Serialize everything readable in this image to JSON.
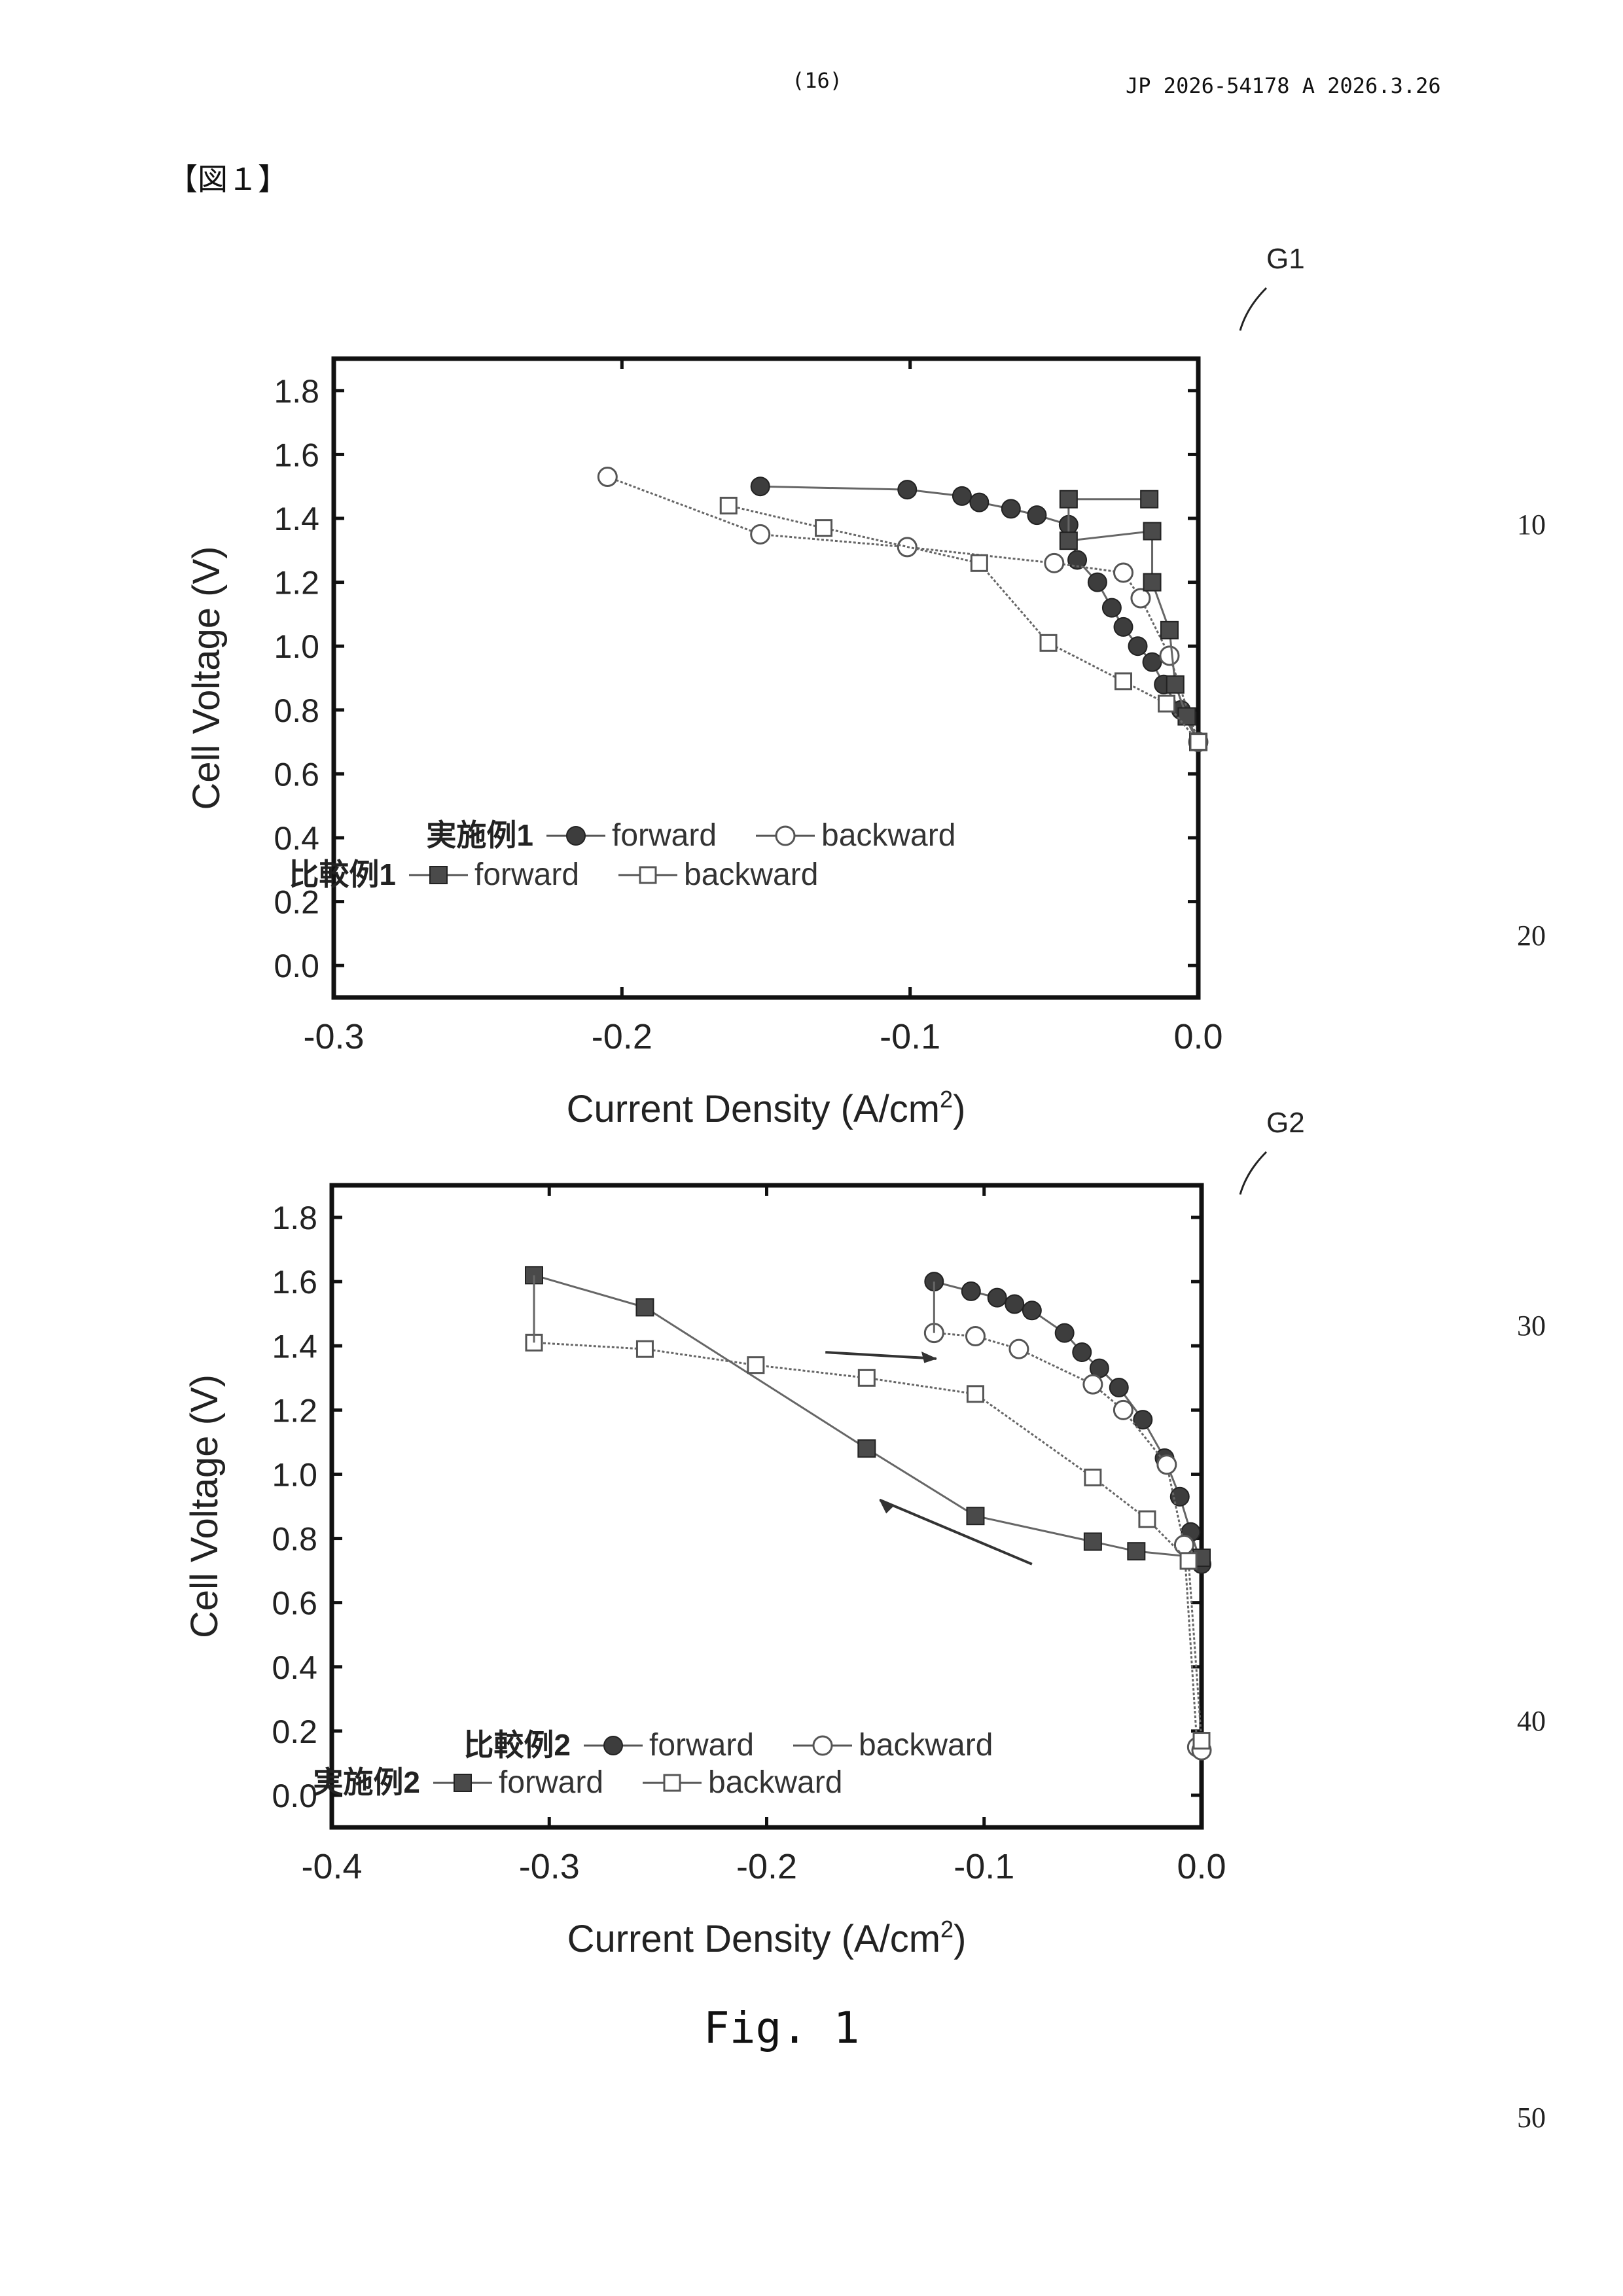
{
  "header": {
    "page": "(16)",
    "doc_id": "JP  2026-54178  A  2026.3.26"
  },
  "figure_label": "【図１】",
  "caption": "Fig. 1",
  "line_numbers": [
    "10",
    "20",
    "30",
    "40",
    "50"
  ],
  "chart_data": [
    {
      "id": "G1",
      "type": "line",
      "label": "G1",
      "xlabel": "Current Density (A/cm",
      "xlabel_sup": "2",
      "xlabel_end": ")",
      "ylabel": "Cell Voltage (V)",
      "xlim": [
        -0.3,
        0.0
      ],
      "ylim": [
        -0.1,
        1.9
      ],
      "xticks": [
        "-0.3",
        "-0.2",
        "-0.1",
        "0.0"
      ],
      "xtick_values": [
        -0.3,
        -0.2,
        -0.1,
        0.0
      ],
      "yticks": [
        "0.0",
        "0.2",
        "0.4",
        "0.6",
        "0.8",
        "1.0",
        "1.2",
        "1.4",
        "1.6",
        "1.8"
      ],
      "ytick_values": [
        0,
        0.2,
        0.4,
        0.6,
        0.8,
        1.0,
        1.2,
        1.4,
        1.6,
        1.8
      ],
      "legend": [
        {
          "group": "実施例1",
          "entries": [
            "forward",
            "backward"
          ]
        },
        {
          "group": "比較例1",
          "entries": [
            "forward",
            "backward"
          ]
        }
      ],
      "series": [
        {
          "name": "実施例1 forward",
          "marker": "filled-circle",
          "x": [
            -0.152,
            -0.101,
            -0.082,
            -0.076,
            -0.065,
            -0.056,
            -0.045,
            -0.042,
            -0.035,
            -0.03,
            -0.026,
            -0.021,
            -0.016,
            -0.012,
            -0.006,
            0.0
          ],
          "y": [
            1.5,
            1.49,
            1.47,
            1.45,
            1.43,
            1.41,
            1.38,
            1.27,
            1.2,
            1.12,
            1.06,
            1.0,
            0.95,
            0.88,
            0.8,
            0.7
          ]
        },
        {
          "name": "実施例1 backward",
          "marker": "open-circle",
          "x": [
            -0.205,
            -0.152,
            -0.101,
            -0.05,
            -0.026,
            -0.02,
            -0.01,
            0.0
          ],
          "y": [
            1.53,
            1.35,
            1.31,
            1.26,
            1.23,
            1.15,
            0.97,
            0.7
          ]
        },
        {
          "name": "比較例1 forward",
          "marker": "filled-square",
          "x": [
            -0.017,
            -0.045,
            -0.045,
            -0.016,
            -0.016,
            -0.01,
            -0.008,
            -0.004,
            0.0
          ],
          "y": [
            1.46,
            1.46,
            1.33,
            1.36,
            1.2,
            1.05,
            0.88,
            0.78,
            0.7
          ]
        },
        {
          "name": "比較例1 backward",
          "marker": "open-square",
          "x": [
            -0.163,
            -0.13,
            -0.076,
            -0.052,
            -0.026,
            -0.011,
            0.0
          ],
          "y": [
            1.44,
            1.37,
            1.26,
            1.01,
            0.89,
            0.82,
            0.7
          ]
        }
      ]
    },
    {
      "id": "G2",
      "type": "line",
      "label": "G2",
      "xlabel": "Current Density (A/cm",
      "xlabel_sup": "2",
      "xlabel_end": ")",
      "ylabel": "Cell Voltage (V)",
      "xlim": [
        -0.4,
        0.0
      ],
      "ylim": [
        -0.1,
        1.9
      ],
      "xticks": [
        "-0.4",
        "-0.3",
        "-0.2",
        "-0.1",
        "0.0"
      ],
      "xtick_values": [
        -0.4,
        -0.3,
        -0.2,
        -0.1,
        0.0
      ],
      "yticks": [
        "0.0",
        "0.2",
        "0.4",
        "0.6",
        "0.8",
        "1.0",
        "1.2",
        "1.4",
        "1.6",
        "1.8"
      ],
      "ytick_values": [
        0,
        0.2,
        0.4,
        0.6,
        0.8,
        1.0,
        1.2,
        1.4,
        1.6,
        1.8
      ],
      "legend": [
        {
          "group": "比較例2",
          "entries": [
            "forward",
            "backward"
          ]
        },
        {
          "group": "実施例2",
          "entries": [
            "forward",
            "backward"
          ]
        }
      ],
      "series": [
        {
          "name": "比較例2 forward",
          "marker": "filled-circle",
          "x": [
            -0.123,
            -0.106,
            -0.094,
            -0.086,
            -0.078,
            -0.063,
            -0.055,
            -0.047,
            -0.038,
            -0.027,
            -0.017,
            -0.01,
            -0.005,
            0.0
          ],
          "y": [
            1.6,
            1.57,
            1.55,
            1.53,
            1.51,
            1.44,
            1.38,
            1.33,
            1.27,
            1.17,
            1.05,
            0.93,
            0.82,
            0.72
          ]
        },
        {
          "name": "比較例2 backward",
          "marker": "open-circle",
          "x": [
            -0.123,
            -0.104,
            -0.084,
            -0.05,
            -0.036,
            -0.016,
            -0.008,
            -0.002,
            0.0
          ],
          "y": [
            1.44,
            1.43,
            1.39,
            1.28,
            1.2,
            1.03,
            0.78,
            0.15,
            0.14
          ]
        },
        {
          "name": "実施例2 forward",
          "marker": "filled-square",
          "x": [
            -0.307,
            -0.256,
            -0.154,
            -0.104,
            -0.05,
            -0.03,
            0.0
          ],
          "y": [
            1.62,
            1.52,
            1.08,
            0.87,
            0.79,
            0.76,
            0.74
          ]
        },
        {
          "name": "実施例2 backward",
          "marker": "open-square",
          "x": [
            -0.307,
            -0.256,
            -0.205,
            -0.154,
            -0.104,
            -0.05,
            -0.025,
            -0.006,
            0.0
          ],
          "y": [
            1.41,
            1.39,
            1.34,
            1.3,
            1.25,
            0.99,
            0.86,
            0.73,
            0.17
          ]
        }
      ]
    }
  ]
}
